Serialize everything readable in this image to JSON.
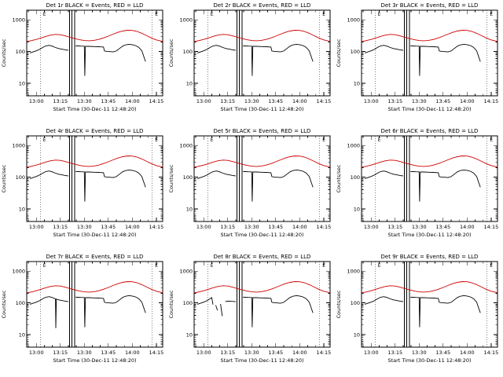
{
  "figure": {
    "background": "#ffffff",
    "columns": 3,
    "rows": 3
  },
  "chart_data": {
    "type": "line",
    "y_scale": "log",
    "panels": [
      {
        "title": "Det 1r BLACK = Events, RED = LLD"
      },
      {
        "title": "Det 2r BLACK = Events, RED = LLD"
      },
      {
        "title": "Det 3r BLACK = Events, RED = LLD"
      },
      {
        "title": "Det 4r BLACK = Events, RED = LLD"
      },
      {
        "title": "Det 5r BLACK = Events, RED = LLD"
      },
      {
        "title": "Det 6r BLACK = Events, RED = LLD"
      },
      {
        "title": "Det 7r BLACK = Events, RED = LLD",
        "black_pre": [
          [
            [
              -4,
              90
            ],
            [
              -2,
              97
            ],
            [
              0,
              105
            ],
            [
              2,
              116
            ],
            [
              4,
              134
            ],
            [
              6,
              150
            ],
            [
              8,
              156
            ],
            [
              10,
              147
            ],
            [
              12,
              133
            ],
            [
              12.2,
              16
            ],
            [
              12.5,
              131
            ],
            [
              14,
              124
            ],
            [
              16,
              118
            ],
            [
              18,
              113
            ],
            [
              20,
              109
            ]
          ]
        ]
      },
      {
        "title": "Det 8r BLACK = Events, RED = LLD",
        "black_pre": [
          [
            [
              -4,
              90
            ],
            [
              -2,
              97
            ],
            [
              0,
              105
            ],
            [
              2,
              116
            ],
            [
              4,
              136
            ],
            [
              5,
              146
            ],
            [
              5.8,
              88
            ]
          ],
          [
            [
              7.5,
              84
            ],
            [
              8.6,
              58
            ]
          ],
          [
            [
              10.5,
              92
            ],
            [
              11.6,
              38
            ]
          ],
          [
            [
              13.5,
              110
            ],
            [
              15,
              113
            ],
            [
              17,
              112
            ],
            [
              19,
              110
            ],
            [
              20,
              109
            ]
          ]
        ]
      },
      {
        "title": "Det 9r BLACK = Events, RED = LLD"
      }
    ],
    "shared": {
      "xlabel": "Start Time (30-Dec-11 12:48:20)",
      "ylabel": "Counts/sec",
      "x_range_minutes": [
        -6,
        79
      ],
      "x_minor_step": 5,
      "x_tick_minutes": [
        0,
        15,
        30,
        45,
        60,
        75
      ],
      "x_tick_labels": [
        "13:00",
        "13:15",
        "13:30",
        "13:45",
        "14:00",
        "14:15"
      ],
      "y_range": [
        4,
        2000
      ],
      "y_ticks": [
        10,
        100,
        1000
      ],
      "y_tick_labels": [
        "10",
        "100",
        "1000"
      ],
      "legend": {
        "black": "Events",
        "red": "LLD"
      },
      "colors": {
        "events": "#000000",
        "lld": "#cc0000",
        "axes": "#000000"
      },
      "solid_vlines_minutes": [
        20.8,
        22.3,
        24.0
      ],
      "dotted_vlines_minutes": [
        2.5,
        72.5
      ],
      "flags": [
        {
          "x_minutes": 3.2,
          "label": "E"
        },
        {
          "x_minutes": 73.2,
          "label": "E"
        }
      ],
      "red_series": {
        "x_minutes": [
          -6,
          -3,
          0,
          3,
          6,
          9,
          12,
          15,
          18,
          21,
          24,
          27,
          30,
          33,
          36,
          39,
          42,
          45,
          48,
          51,
          54,
          57,
          60,
          63,
          66,
          69,
          72,
          75,
          79
        ],
        "counts": [
          205,
          220,
          240,
          268,
          300,
          328,
          345,
          338,
          312,
          282,
          255,
          235,
          222,
          218,
          224,
          240,
          268,
          305,
          352,
          400,
          442,
          468,
          462,
          430,
          375,
          315,
          265,
          232,
          208
        ]
      },
      "black_pre_default": [
        [
          [
            -4,
            90
          ],
          [
            -2,
            97
          ],
          [
            0,
            105
          ],
          [
            2,
            116
          ],
          [
            4,
            134
          ],
          [
            6,
            150
          ],
          [
            8,
            156
          ],
          [
            10,
            147
          ],
          [
            12,
            133
          ],
          [
            14,
            124
          ],
          [
            16,
            118
          ],
          [
            18,
            113
          ],
          [
            20,
            109
          ]
        ]
      ],
      "black_post": [
        [
          [
            24.5,
            151
          ],
          [
            26,
            149
          ],
          [
            28,
            148
          ],
          [
            30,
            147
          ],
          [
            30.3,
            17
          ],
          [
            30.7,
            146
          ],
          [
            33,
            145
          ],
          [
            36,
            143
          ],
          [
            39,
            141
          ],
          [
            42,
            138
          ],
          [
            42.6,
            104
          ],
          [
            44,
            101
          ],
          [
            46,
            99
          ],
          [
            48,
            97
          ],
          [
            50,
            104
          ],
          [
            52,
            124
          ],
          [
            54,
            148
          ],
          [
            56,
            163
          ],
          [
            58,
            168
          ],
          [
            60,
            164
          ],
          [
            62,
            154
          ],
          [
            64,
            136
          ],
          [
            66,
            105
          ],
          [
            67.5,
            62
          ],
          [
            68.3,
            48
          ]
        ]
      ]
    }
  }
}
